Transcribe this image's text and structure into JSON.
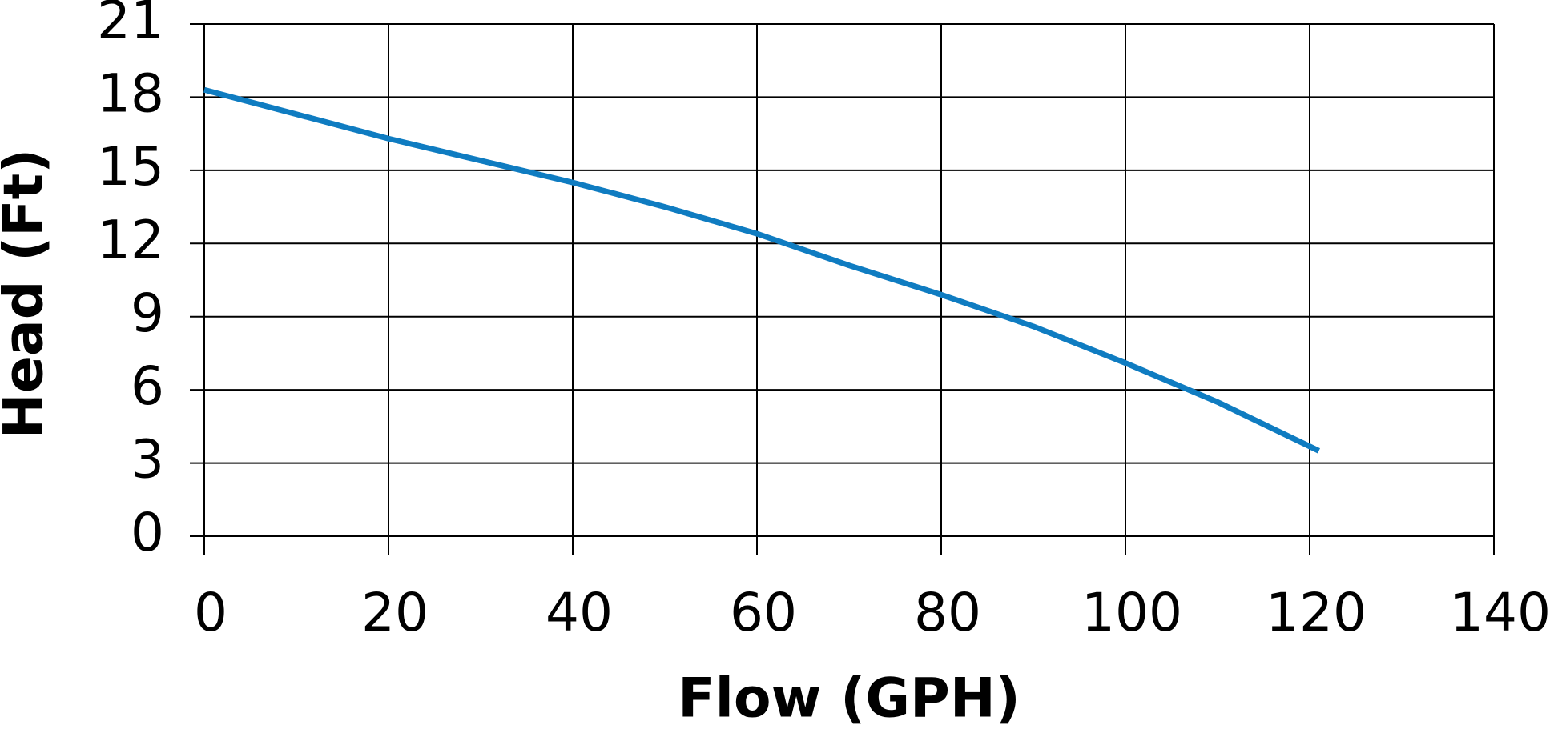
{
  "chart_data": {
    "type": "line",
    "x_label": "Flow (GPH)",
    "y_label": "Head (Ft)",
    "x": [
      0,
      10,
      20,
      30,
      40,
      50,
      60,
      70,
      80,
      90,
      100,
      110,
      121
    ],
    "series": [
      {
        "color": "#0f7cc1",
        "values": [
          18.3,
          17.3,
          16.3,
          15.4,
          14.5,
          13.5,
          12.4,
          11.1,
          9.9,
          8.6,
          7.1,
          5.5,
          3.5
        ]
      }
    ],
    "xlim": [
      0,
      140
    ],
    "xticks": [
      0,
      20,
      40,
      60,
      80,
      100,
      120,
      140
    ],
    "ylim": [
      0,
      21
    ],
    "yticks": [
      0,
      3,
      6,
      9,
      12,
      15,
      18,
      21
    ],
    "grid": true
  }
}
